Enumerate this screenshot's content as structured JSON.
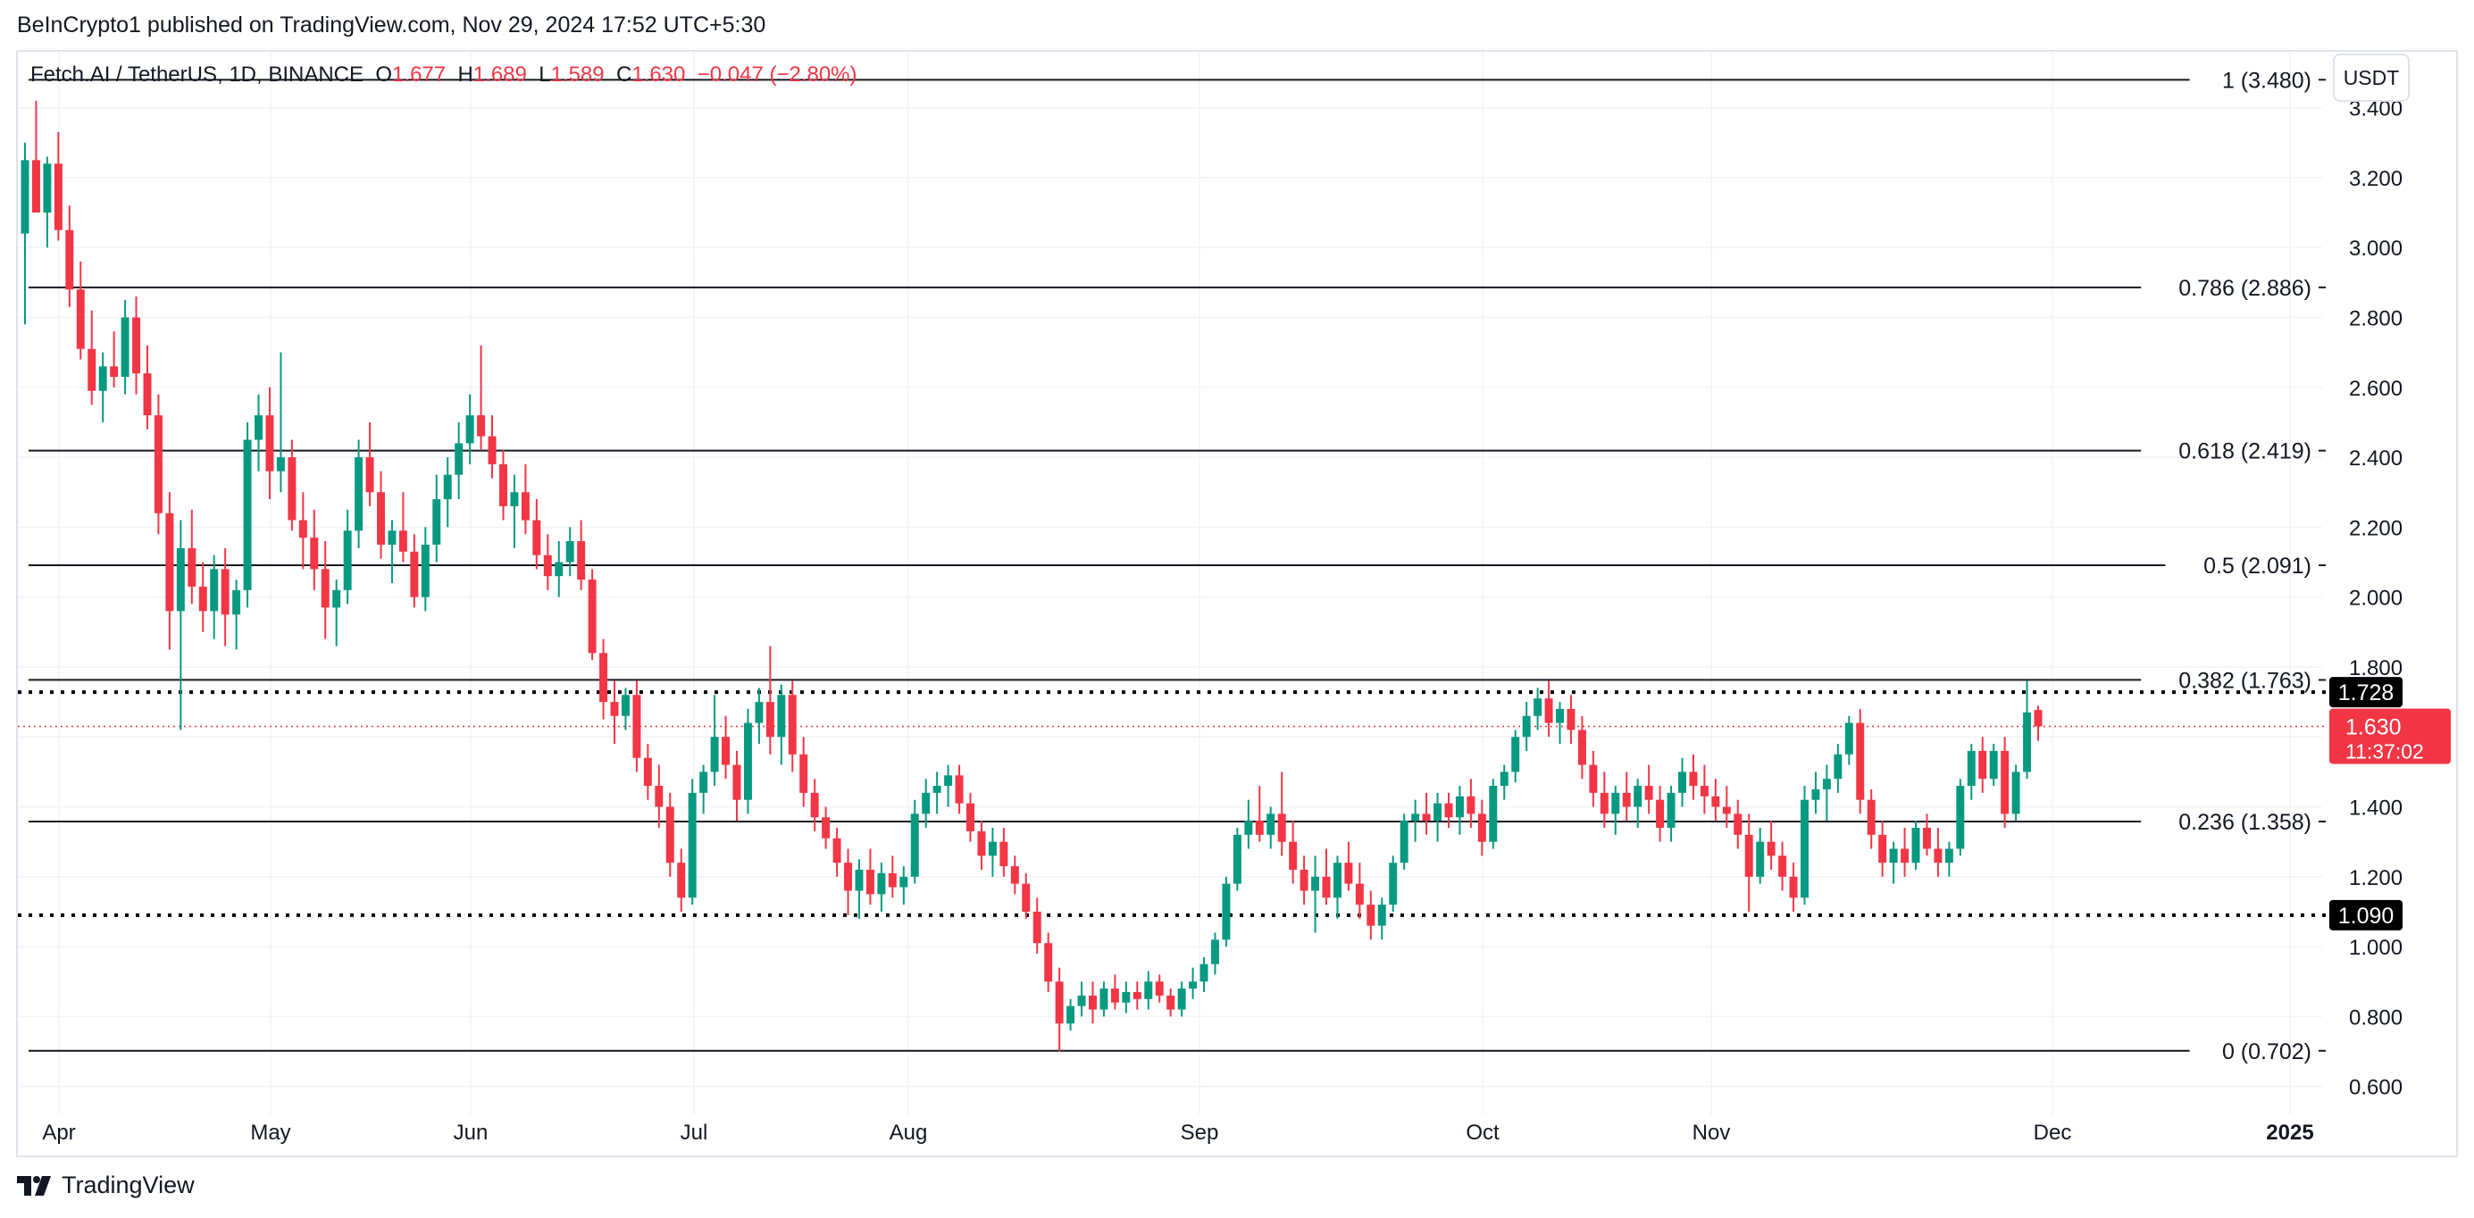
{
  "publisher": "BeInCrypto1 published on TradingView.com, Nov 29, 2024 17:52 UTC+5:30",
  "legend": {
    "symbol": "Fetch.AI / TetherUS, 1D, BINANCE",
    "o_label": "O",
    "o_value": "1.677",
    "h_label": "H",
    "h_value": "1.689",
    "l_label": "L",
    "l_value": "1.589",
    "c_label": "C",
    "c_value": "1.630",
    "change": "−0.047 (−2.80%)"
  },
  "currency": "USDT",
  "brand": {
    "name": "TradingView",
    "logo_icon": "tradingview-logo-icon"
  },
  "colors": {
    "up": "#089981",
    "down": "#f23645",
    "grid": "#f0f3fa",
    "text": "#131722"
  },
  "chart_data": {
    "type": "candlestick",
    "x_ticks": [
      "Apr",
      "May",
      "Jun",
      "Jul",
      "Aug",
      "Sep",
      "Oct",
      "Nov",
      "Dec",
      "2025"
    ],
    "y_ticks": [
      "0.600",
      "0.800",
      "1.000",
      "1.200",
      "1.400",
      "1.600",
      "1.800",
      "2.000",
      "2.200",
      "2.400",
      "2.600",
      "2.800",
      "3.000",
      "3.200",
      "3.400"
    ],
    "ylim": [
      0.52,
      3.56
    ],
    "grid": true,
    "fib_levels": [
      {
        "ratio": "1",
        "price": 3.48,
        "label": "1 (3.480)"
      },
      {
        "ratio": "0.786",
        "price": 2.886,
        "label": "0.786 (2.886)"
      },
      {
        "ratio": "0.618",
        "price": 2.419,
        "label": "0.618 (2.419)"
      },
      {
        "ratio": "0.5",
        "price": 2.091,
        "label": "0.5 (2.091)"
      },
      {
        "ratio": "0.382",
        "price": 1.763,
        "label": "0.382 (1.763)"
      },
      {
        "ratio": "0.236",
        "price": 1.358,
        "label": "0.236 (1.358)"
      },
      {
        "ratio": "0",
        "price": 0.702,
        "label": "0 (0.702)"
      }
    ],
    "horizontal_levels": [
      {
        "price": 1.728,
        "label": "1.728"
      },
      {
        "price": 1.09,
        "label": "1.090"
      }
    ],
    "last_price": {
      "price": 1.63,
      "label": "1.630",
      "countdown": "11:37:02"
    },
    "candles": [
      [
        3.04,
        3.3,
        2.78,
        3.25
      ],
      [
        3.25,
        3.42,
        3.12,
        3.1
      ],
      [
        3.1,
        3.26,
        3.0,
        3.24
      ],
      [
        3.24,
        3.33,
        3.02,
        3.05
      ],
      [
        3.05,
        3.12,
        2.83,
        2.88
      ],
      [
        2.88,
        2.96,
        2.68,
        2.71
      ],
      [
        2.71,
        2.82,
        2.55,
        2.59
      ],
      [
        2.59,
        2.7,
        2.5,
        2.66
      ],
      [
        2.66,
        2.76,
        2.6,
        2.63
      ],
      [
        2.63,
        2.85,
        2.58,
        2.8
      ],
      [
        2.8,
        2.86,
        2.58,
        2.64
      ],
      [
        2.64,
        2.72,
        2.48,
        2.52
      ],
      [
        2.52,
        2.58,
        2.18,
        2.24
      ],
      [
        2.24,
        2.3,
        1.85,
        1.96
      ],
      [
        1.96,
        2.22,
        1.62,
        2.14
      ],
      [
        2.14,
        2.25,
        1.98,
        2.03
      ],
      [
        2.03,
        2.1,
        1.9,
        1.96
      ],
      [
        1.96,
        2.12,
        1.88,
        2.08
      ],
      [
        2.08,
        2.14,
        1.86,
        1.95
      ],
      [
        1.95,
        2.05,
        1.85,
        2.02
      ],
      [
        2.02,
        2.5,
        1.97,
        2.45
      ],
      [
        2.45,
        2.58,
        2.36,
        2.52
      ],
      [
        2.52,
        2.6,
        2.28,
        2.36
      ],
      [
        2.36,
        2.7,
        2.3,
        2.4
      ],
      [
        2.4,
        2.45,
        2.19,
        2.22
      ],
      [
        2.22,
        2.3,
        2.08,
        2.17
      ],
      [
        2.17,
        2.25,
        2.02,
        2.08
      ],
      [
        2.08,
        2.16,
        1.88,
        1.97
      ],
      [
        1.97,
        2.05,
        1.86,
        2.02
      ],
      [
        2.02,
        2.25,
        1.98,
        2.19
      ],
      [
        2.19,
        2.45,
        2.14,
        2.4
      ],
      [
        2.4,
        2.5,
        2.26,
        2.3
      ],
      [
        2.3,
        2.36,
        2.11,
        2.15
      ],
      [
        2.15,
        2.22,
        2.04,
        2.19
      ],
      [
        2.19,
        2.3,
        2.1,
        2.13
      ],
      [
        2.13,
        2.18,
        1.97,
        2.0
      ],
      [
        2.0,
        2.2,
        1.96,
        2.15
      ],
      [
        2.15,
        2.35,
        2.1,
        2.28
      ],
      [
        2.28,
        2.4,
        2.2,
        2.35
      ],
      [
        2.35,
        2.5,
        2.28,
        2.44
      ],
      [
        2.44,
        2.58,
        2.38,
        2.52
      ],
      [
        2.52,
        2.72,
        2.42,
        2.46
      ],
      [
        2.46,
        2.52,
        2.34,
        2.38
      ],
      [
        2.38,
        2.42,
        2.22,
        2.26
      ],
      [
        2.26,
        2.35,
        2.14,
        2.3
      ],
      [
        2.3,
        2.38,
        2.18,
        2.22
      ],
      [
        2.22,
        2.28,
        2.08,
        2.12
      ],
      [
        2.12,
        2.18,
        2.02,
        2.06
      ],
      [
        2.06,
        2.16,
        2.0,
        2.1
      ],
      [
        2.1,
        2.2,
        2.06,
        2.16
      ],
      [
        2.16,
        2.22,
        2.02,
        2.05
      ],
      [
        2.05,
        2.08,
        1.82,
        1.84
      ],
      [
        1.84,
        1.88,
        1.65,
        1.7
      ],
      [
        1.7,
        1.76,
        1.58,
        1.66
      ],
      [
        1.66,
        1.74,
        1.62,
        1.72
      ],
      [
        1.72,
        1.76,
        1.5,
        1.54
      ],
      [
        1.54,
        1.58,
        1.42,
        1.46
      ],
      [
        1.46,
        1.52,
        1.34,
        1.4
      ],
      [
        1.4,
        1.44,
        1.2,
        1.24
      ],
      [
        1.24,
        1.28,
        1.1,
        1.14
      ],
      [
        1.14,
        1.48,
        1.12,
        1.44
      ],
      [
        1.44,
        1.52,
        1.38,
        1.5
      ],
      [
        1.5,
        1.72,
        1.46,
        1.6
      ],
      [
        1.6,
        1.66,
        1.48,
        1.52
      ],
      [
        1.52,
        1.56,
        1.36,
        1.42
      ],
      [
        1.42,
        1.68,
        1.38,
        1.64
      ],
      [
        1.64,
        1.74,
        1.58,
        1.7
      ],
      [
        1.7,
        1.86,
        1.55,
        1.6
      ],
      [
        1.6,
        1.75,
        1.52,
        1.72
      ],
      [
        1.72,
        1.76,
        1.5,
        1.55
      ],
      [
        1.55,
        1.6,
        1.4,
        1.44
      ],
      [
        1.44,
        1.48,
        1.33,
        1.37
      ],
      [
        1.37,
        1.4,
        1.28,
        1.31
      ],
      [
        1.31,
        1.34,
        1.2,
        1.24
      ],
      [
        1.24,
        1.28,
        1.09,
        1.16
      ],
      [
        1.16,
        1.25,
        1.08,
        1.22
      ],
      [
        1.22,
        1.28,
        1.12,
        1.15
      ],
      [
        1.15,
        1.24,
        1.1,
        1.21
      ],
      [
        1.21,
        1.26,
        1.14,
        1.17
      ],
      [
        1.17,
        1.23,
        1.12,
        1.2
      ],
      [
        1.2,
        1.42,
        1.18,
        1.38
      ],
      [
        1.38,
        1.48,
        1.34,
        1.44
      ],
      [
        1.44,
        1.5,
        1.38,
        1.46
      ],
      [
        1.46,
        1.52,
        1.4,
        1.49
      ],
      [
        1.49,
        1.52,
        1.38,
        1.41
      ],
      [
        1.41,
        1.44,
        1.3,
        1.33
      ],
      [
        1.33,
        1.36,
        1.22,
        1.26
      ],
      [
        1.26,
        1.34,
        1.2,
        1.3
      ],
      [
        1.3,
        1.34,
        1.2,
        1.23
      ],
      [
        1.23,
        1.26,
        1.15,
        1.18
      ],
      [
        1.18,
        1.21,
        1.08,
        1.1
      ],
      [
        1.1,
        1.14,
        0.98,
        1.01
      ],
      [
        1.01,
        1.04,
        0.87,
        0.9
      ],
      [
        0.9,
        0.94,
        0.7,
        0.78
      ],
      [
        0.78,
        0.85,
        0.76,
        0.83
      ],
      [
        0.83,
        0.9,
        0.8,
        0.86
      ],
      [
        0.86,
        0.9,
        0.78,
        0.82
      ],
      [
        0.82,
        0.9,
        0.8,
        0.88
      ],
      [
        0.88,
        0.92,
        0.82,
        0.84
      ],
      [
        0.84,
        0.9,
        0.81,
        0.87
      ],
      [
        0.87,
        0.9,
        0.82,
        0.85
      ],
      [
        0.85,
        0.93,
        0.82,
        0.9
      ],
      [
        0.9,
        0.92,
        0.84,
        0.86
      ],
      [
        0.86,
        0.88,
        0.8,
        0.82
      ],
      [
        0.82,
        0.9,
        0.8,
        0.88
      ],
      [
        0.88,
        0.94,
        0.85,
        0.9
      ],
      [
        0.9,
        0.97,
        0.87,
        0.95
      ],
      [
        0.95,
        1.04,
        0.92,
        1.02
      ],
      [
        1.02,
        1.2,
        1.0,
        1.18
      ],
      [
        1.18,
        1.34,
        1.16,
        1.32
      ],
      [
        1.32,
        1.42,
        1.28,
        1.36
      ],
      [
        1.36,
        1.46,
        1.3,
        1.32
      ],
      [
        1.32,
        1.4,
        1.28,
        1.38
      ],
      [
        1.38,
        1.5,
        1.26,
        1.3
      ],
      [
        1.3,
        1.36,
        1.18,
        1.22
      ],
      [
        1.22,
        1.26,
        1.12,
        1.16
      ],
      [
        1.16,
        1.26,
        1.04,
        1.2
      ],
      [
        1.2,
        1.28,
        1.12,
        1.14
      ],
      [
        1.14,
        1.26,
        1.08,
        1.24
      ],
      [
        1.24,
        1.3,
        1.16,
        1.18
      ],
      [
        1.18,
        1.24,
        1.08,
        1.12
      ],
      [
        1.12,
        1.16,
        1.02,
        1.06
      ],
      [
        1.06,
        1.14,
        1.02,
        1.12
      ],
      [
        1.12,
        1.26,
        1.1,
        1.24
      ],
      [
        1.24,
        1.38,
        1.22,
        1.36
      ],
      [
        1.36,
        1.42,
        1.3,
        1.38
      ],
      [
        1.38,
        1.44,
        1.32,
        1.36
      ],
      [
        1.36,
        1.44,
        1.3,
        1.41
      ],
      [
        1.41,
        1.44,
        1.34,
        1.37
      ],
      [
        1.37,
        1.46,
        1.32,
        1.43
      ],
      [
        1.43,
        1.48,
        1.34,
        1.38
      ],
      [
        1.38,
        1.42,
        1.26,
        1.3
      ],
      [
        1.3,
        1.48,
        1.28,
        1.46
      ],
      [
        1.46,
        1.52,
        1.42,
        1.5
      ],
      [
        1.5,
        1.62,
        1.47,
        1.6
      ],
      [
        1.6,
        1.7,
        1.56,
        1.66
      ],
      [
        1.66,
        1.74,
        1.62,
        1.71
      ],
      [
        1.71,
        1.76,
        1.6,
        1.64
      ],
      [
        1.64,
        1.7,
        1.58,
        1.68
      ],
      [
        1.68,
        1.72,
        1.58,
        1.62
      ],
      [
        1.62,
        1.66,
        1.48,
        1.52
      ],
      [
        1.52,
        1.56,
        1.4,
        1.44
      ],
      [
        1.44,
        1.5,
        1.34,
        1.38
      ],
      [
        1.38,
        1.46,
        1.32,
        1.44
      ],
      [
        1.44,
        1.5,
        1.36,
        1.4
      ],
      [
        1.4,
        1.48,
        1.34,
        1.46
      ],
      [
        1.46,
        1.52,
        1.38,
        1.42
      ],
      [
        1.42,
        1.46,
        1.3,
        1.34
      ],
      [
        1.34,
        1.46,
        1.3,
        1.44
      ],
      [
        1.44,
        1.54,
        1.4,
        1.5
      ],
      [
        1.5,
        1.55,
        1.42,
        1.46
      ],
      [
        1.46,
        1.52,
        1.38,
        1.43
      ],
      [
        1.43,
        1.48,
        1.36,
        1.4
      ],
      [
        1.4,
        1.46,
        1.34,
        1.38
      ],
      [
        1.38,
        1.42,
        1.28,
        1.32
      ],
      [
        1.32,
        1.38,
        1.1,
        1.2
      ],
      [
        1.2,
        1.34,
        1.18,
        1.3
      ],
      [
        1.3,
        1.36,
        1.22,
        1.26
      ],
      [
        1.26,
        1.3,
        1.16,
        1.2
      ],
      [
        1.2,
        1.24,
        1.1,
        1.14
      ],
      [
        1.14,
        1.46,
        1.12,
        1.42
      ],
      [
        1.42,
        1.5,
        1.38,
        1.45
      ],
      [
        1.45,
        1.52,
        1.36,
        1.48
      ],
      [
        1.48,
        1.58,
        1.44,
        1.55
      ],
      [
        1.55,
        1.66,
        1.52,
        1.64
      ],
      [
        1.64,
        1.68,
        1.38,
        1.42
      ],
      [
        1.42,
        1.45,
        1.28,
        1.32
      ],
      [
        1.32,
        1.36,
        1.2,
        1.24
      ],
      [
        1.24,
        1.3,
        1.18,
        1.28
      ],
      [
        1.28,
        1.34,
        1.2,
        1.24
      ],
      [
        1.24,
        1.36,
        1.22,
        1.34
      ],
      [
        1.34,
        1.38,
        1.26,
        1.28
      ],
      [
        1.28,
        1.34,
        1.2,
        1.24
      ],
      [
        1.24,
        1.3,
        1.2,
        1.28
      ],
      [
        1.28,
        1.48,
        1.26,
        1.46
      ],
      [
        1.46,
        1.58,
        1.42,
        1.56
      ],
      [
        1.56,
        1.6,
        1.44,
        1.48
      ],
      [
        1.48,
        1.58,
        1.46,
        1.56
      ],
      [
        1.56,
        1.6,
        1.34,
        1.38
      ],
      [
        1.38,
        1.52,
        1.36,
        1.5
      ],
      [
        1.5,
        1.76,
        1.48,
        1.67
      ],
      [
        1.677,
        1.689,
        1.589,
        1.63
      ]
    ]
  }
}
